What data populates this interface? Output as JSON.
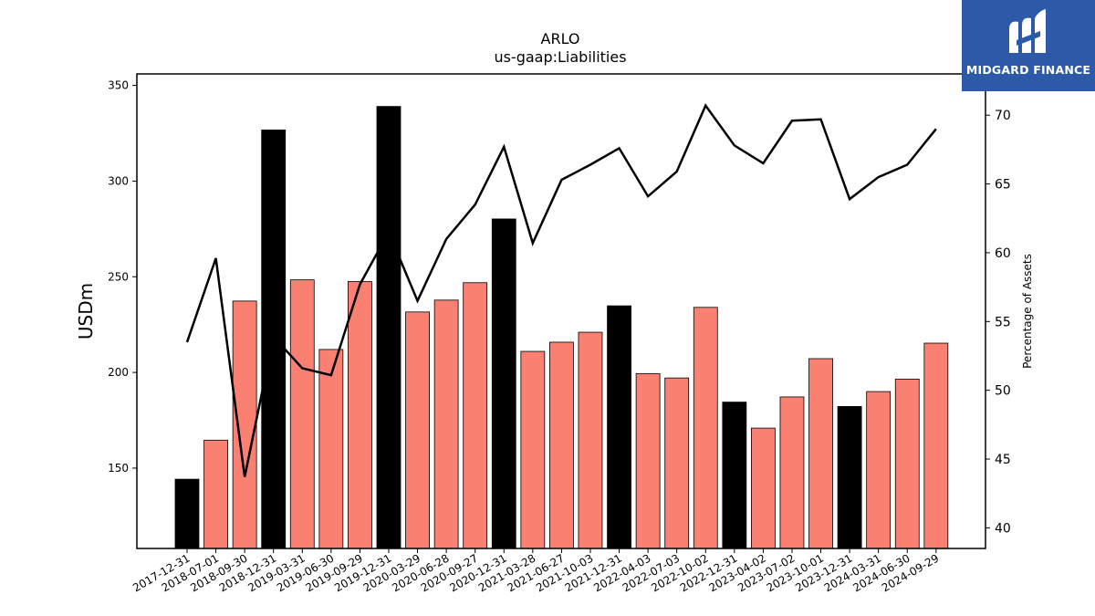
{
  "chart_data": {
    "type": "bar",
    "title": "ARLO",
    "subtitle": "us-gaap:Liabilities",
    "ylabel": "USDm",
    "y2label": "Percentage of Assets",
    "ylim": [
      108,
      356
    ],
    "y2lim": [
      38.5,
      73.0
    ],
    "yticks": [
      150,
      200,
      250,
      300,
      350
    ],
    "y2ticks": [
      40,
      45,
      50,
      55,
      60,
      65,
      70
    ],
    "grid": false,
    "colors": {
      "annual": "#000000",
      "quarterly": "#fa8072",
      "line": "#000000"
    },
    "categories": [
      "2017-12-31",
      "2018-07-01",
      "2018-09-30",
      "2018-12-31",
      "2019-03-31",
      "2019-06-30",
      "2019-09-29",
      "2019-12-31",
      "2020-03-29",
      "2020-06-28",
      "2020-09-27",
      "2020-12-31",
      "2021-03-28",
      "2021-06-27",
      "2021-10-03",
      "2021-12-31",
      "2022-04-03",
      "2022-07-03",
      "2022-10-02",
      "2022-12-31",
      "2023-04-02",
      "2023-07-02",
      "2023-10-01",
      "2023-12-31",
      "2024-03-31",
      "2024-06-30",
      "2024-09-29"
    ],
    "annual_flags": [
      true,
      false,
      false,
      true,
      false,
      false,
      false,
      true,
      false,
      false,
      false,
      true,
      false,
      false,
      false,
      true,
      false,
      false,
      false,
      true,
      false,
      false,
      false,
      true,
      false,
      false,
      false
    ],
    "series": [
      {
        "kind": "bar",
        "values": [
          144.2,
          164.6,
          237.3,
          326.7,
          248.4,
          212.0,
          247.5,
          339.0,
          231.6,
          237.8,
          246.9,
          280.2,
          211.0,
          215.8,
          221.0,
          234.8,
          199.4,
          197.1,
          234.0,
          184.5,
          170.9,
          187.2,
          207.2,
          182.2,
          190.0,
          196.5,
          215.3
        ]
      },
      {
        "kind": "line",
        "axis": "right",
        "values": [
          53.5,
          59.6,
          43.7,
          53.9,
          51.6,
          51.1,
          57.7,
          61.5,
          56.5,
          61.0,
          63.5,
          67.7,
          60.7,
          65.3,
          66.4,
          67.6,
          64.1,
          65.9,
          70.7,
          67.8,
          66.5,
          69.6,
          69.7,
          63.9,
          65.5,
          66.4,
          69.0
        ]
      }
    ]
  },
  "logo": {
    "name": "MIDGARD FINANCE"
  }
}
